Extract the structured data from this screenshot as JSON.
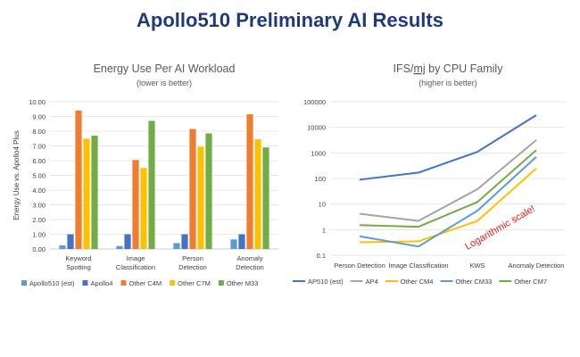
{
  "title": "Apollo510 Preliminary AI Results",
  "chart_data": [
    {
      "type": "bar",
      "title": "Energy Use Per AI Workload",
      "subtitle": "(lower is better)",
      "xlabel": "",
      "ylabel": "Energy Use vs. Apollo4 Plus",
      "ylim": [
        0,
        10
      ],
      "yticks": [
        "0.00",
        "1.00",
        "2.00",
        "3.00",
        "4.00",
        "5.00",
        "6.00",
        "7.00",
        "8.00",
        "9.00",
        "10.00"
      ],
      "categories": [
        [
          "Keyword",
          "Spotting"
        ],
        [
          "Image",
          "Classification"
        ],
        [
          "Person",
          "Detection"
        ],
        [
          "Anomaly",
          "Detection"
        ]
      ],
      "series": [
        {
          "name": "Apollo510 (est)",
          "color": "#5b9bd5",
          "values": [
            0.25,
            0.2,
            0.4,
            0.65
          ]
        },
        {
          "name": "Apollo4",
          "color": "#4472c4",
          "values": [
            1.0,
            1.0,
            1.0,
            1.0
          ]
        },
        {
          "name": "Other C4M",
          "color": "#ed7d31",
          "values": [
            9.4,
            6.05,
            8.15,
            9.15
          ]
        },
        {
          "name": "Other C7M",
          "color": "#ffc000",
          "values": [
            7.5,
            5.5,
            6.95,
            7.45
          ]
        },
        {
          "name": "Other M33",
          "color": "#70ad47",
          "values": [
            7.7,
            8.7,
            7.85,
            6.9
          ]
        }
      ],
      "legend": "bottom"
    },
    {
      "type": "line",
      "title": "IFS/mj by CPU Family",
      "title_prefix": "IFS/",
      "title_underlined": "mj",
      "title_suffix": " by CPU Family",
      "subtitle": "(higher is better)",
      "scale": "log",
      "ylim": [
        0.1,
        100000
      ],
      "yticks": [
        {
          "label": "100000",
          "v": 100000
        },
        {
          "label": "10000",
          "v": 10000
        },
        {
          "label": "1000",
          "v": 1000
        },
        {
          "label": "100",
          "v": 100
        },
        {
          "label": "10",
          "v": 10
        },
        {
          "label": "1",
          "v": 1
        },
        {
          "label": "0.1",
          "v": 0.1
        }
      ],
      "categories": [
        "Person Detection",
        "Image Classification",
        "KWS",
        "Anomaly Detection"
      ],
      "series": [
        {
          "name": "AP510 (est)",
          "color": "#4472c4",
          "values": [
            90,
            170,
            1100,
            30000
          ]
        },
        {
          "name": "AP4",
          "color": "#a5a5a5",
          "values": [
            4.2,
            2.2,
            38,
            3200
          ]
        },
        {
          "name": "Other CM4",
          "color": "#ffc000",
          "values": [
            0.32,
            0.35,
            2.2,
            250
          ]
        },
        {
          "name": "Other CM33",
          "color": "#5b9bd5",
          "values": [
            0.55,
            0.22,
            5.5,
            700
          ]
        },
        {
          "name": "Other CM7",
          "color": "#70ad47",
          "values": [
            1.5,
            1.3,
            12,
            1300
          ]
        }
      ],
      "annotation": "Logarithmic scale!",
      "legend": "bottom"
    }
  ]
}
